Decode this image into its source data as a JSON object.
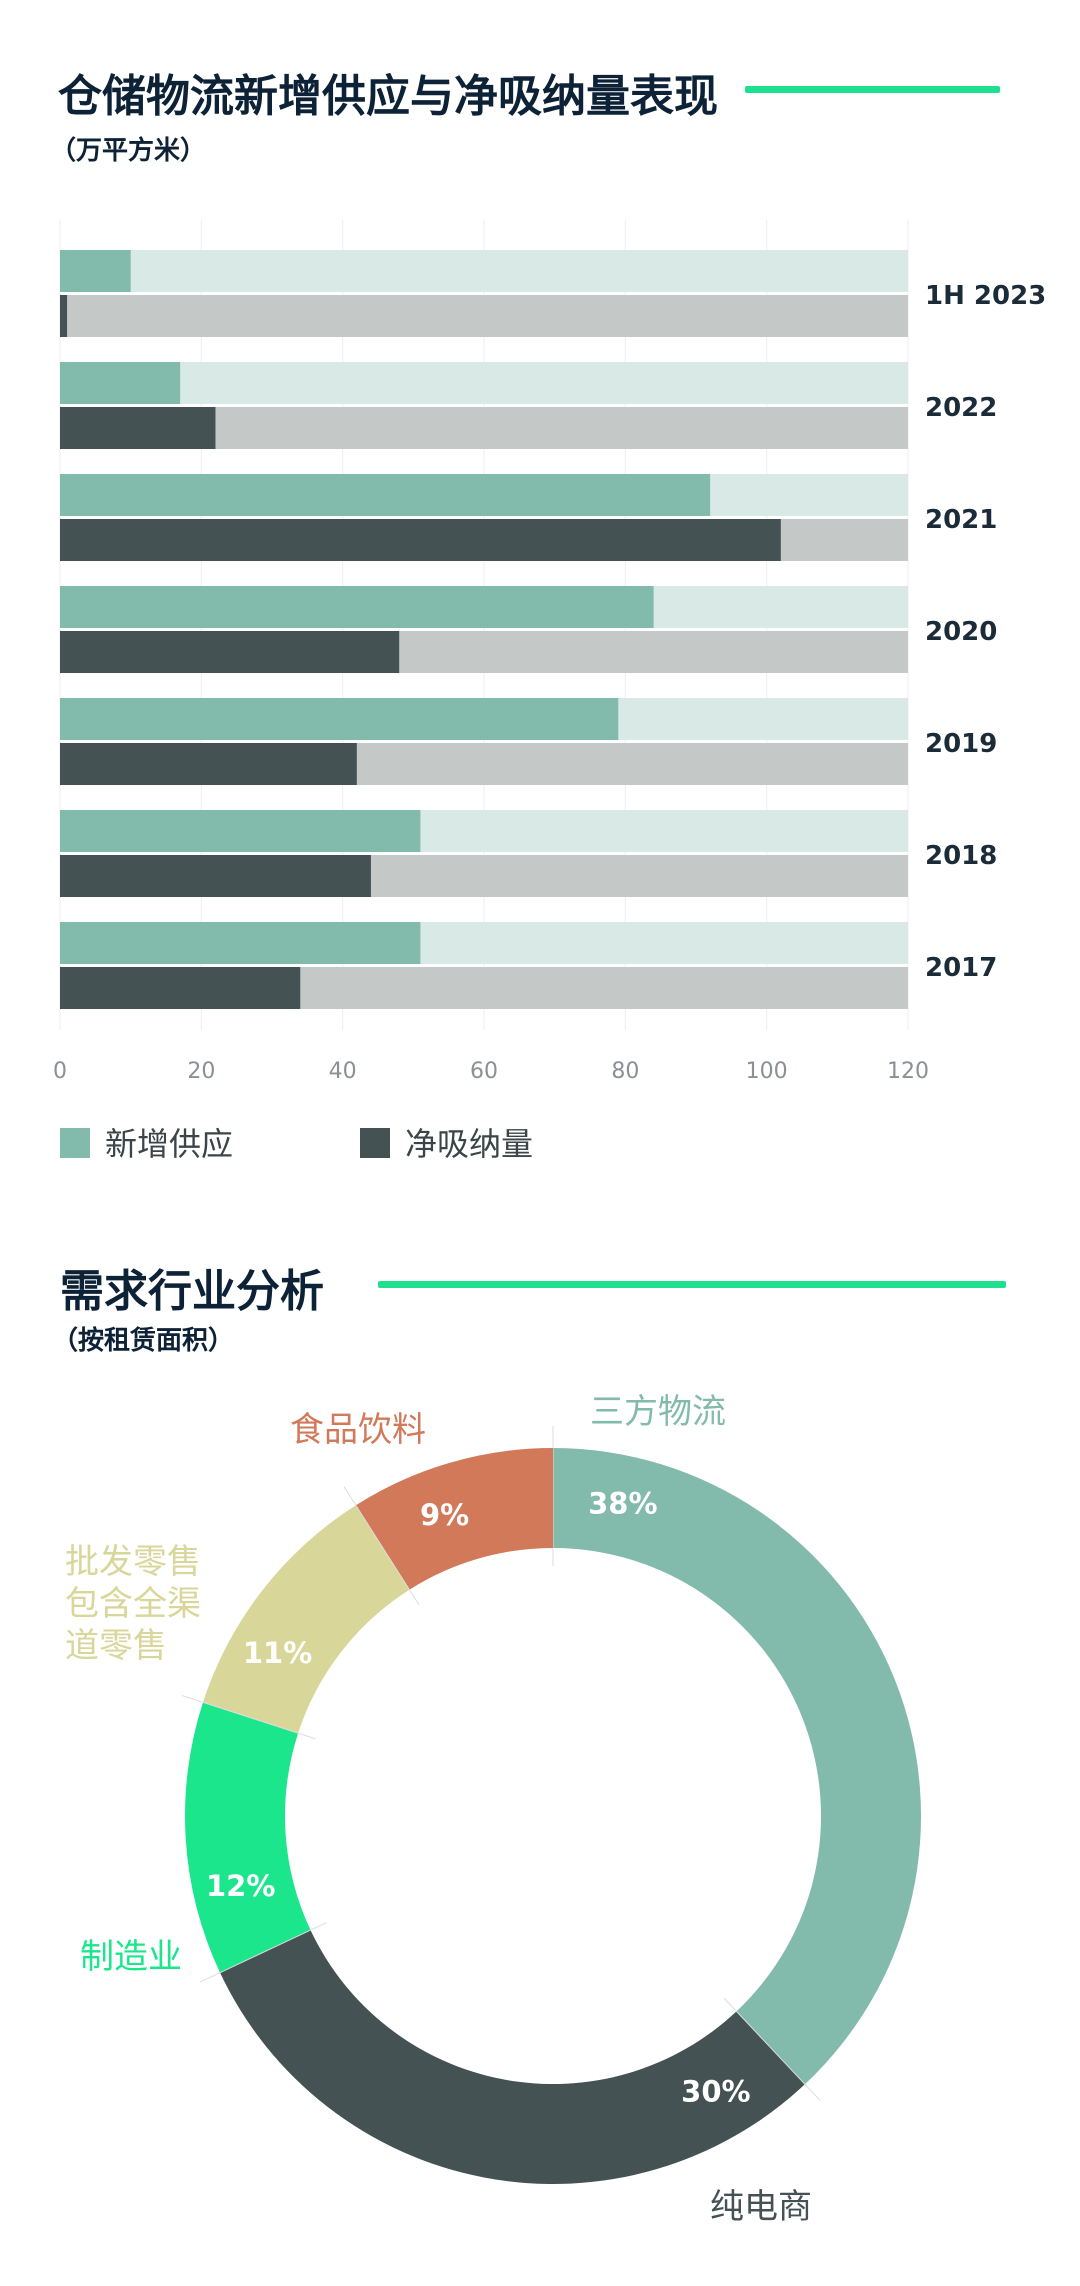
{
  "sections": {
    "supply": {
      "title": "仓储物流新增供应与净吸纳量表现",
      "subtitle": "（万平方米）"
    },
    "demand": {
      "title": "需求行业分析",
      "subtitle": "（按租赁面积）"
    }
  },
  "colors": {
    "accent": "#1ee08e",
    "supply": "#82bbab",
    "supply_bg": "#d9e9e5",
    "absorb": "#455254",
    "absorb_bg": "#c4c9c8",
    "food": "#d2795a",
    "retail": "#d9d69a",
    "manuf": "#1ce68c"
  },
  "chart_data": [
    {
      "type": "bar",
      "orientation": "horizontal",
      "categories": [
        "1H 2023",
        "2022",
        "2021",
        "2020",
        "2019",
        "2018",
        "2017"
      ],
      "series": [
        {
          "name": "新增供应",
          "values": [
            10,
            17,
            92,
            84,
            79,
            51,
            51
          ]
        },
        {
          "name": "净吸纳量",
          "values": [
            1,
            22,
            102,
            48,
            42,
            44,
            34
          ]
        }
      ],
      "xlim": [
        0,
        120
      ],
      "xticks": [
        "0",
        "20",
        "40",
        "60",
        "80",
        "100",
        "120"
      ],
      "legend": "bottom-left",
      "grid": true
    },
    {
      "type": "pie",
      "style": "donut",
      "slices": [
        {
          "label": "三方物流",
          "value": 38,
          "pct": "38%",
          "color": "#82bbab"
        },
        {
          "label": "纯电商",
          "value": 30,
          "pct": "30%",
          "color": "#455254"
        },
        {
          "label": "制造业",
          "value": 12,
          "pct": "12%",
          "color": "#1ce68c"
        },
        {
          "label": "批发零售\n包含全渠\n道零售",
          "lines": [
            "批发零售",
            "包含全渠",
            "道零售"
          ],
          "value": 11,
          "pct": "11%",
          "color": "#d9d69a"
        },
        {
          "label": "食品饮料",
          "value": 9,
          "pct": "9%",
          "color": "#d2795a"
        }
      ]
    }
  ]
}
